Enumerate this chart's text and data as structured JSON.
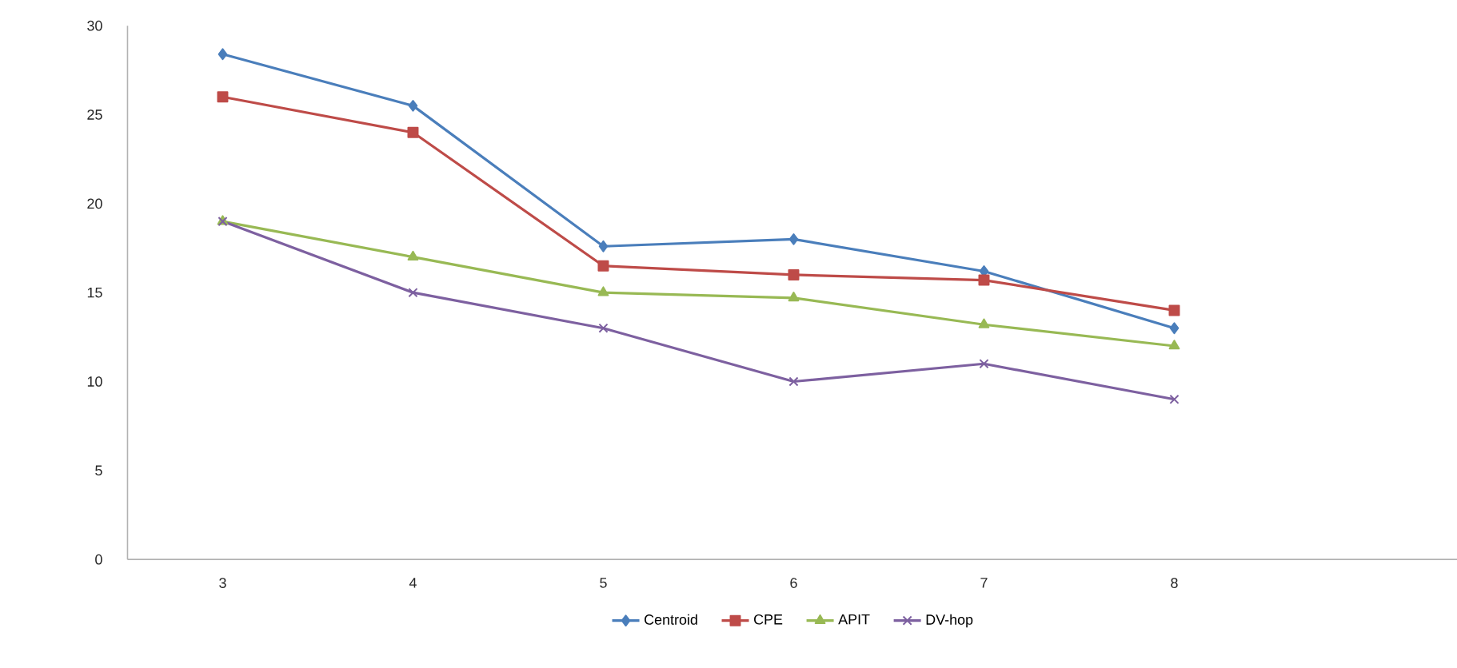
{
  "chart_data": {
    "type": "line",
    "categories": [
      "3",
      "4",
      "5",
      "6",
      "7",
      "8"
    ],
    "ylim": [
      0,
      30
    ],
    "yticks": [
      0,
      5,
      10,
      15,
      20,
      25,
      30
    ],
    "grid": false,
    "legend": "bottom",
    "series": [
      {
        "name": "Centroid",
        "color": "#4a7ebb",
        "marker": "diamond",
        "values": [
          28.4,
          25.5,
          17.6,
          18,
          16.2,
          13
        ]
      },
      {
        "name": "CPE",
        "color": "#be4b48",
        "marker": "square",
        "values": [
          26,
          24,
          16.5,
          16,
          15.7,
          14
        ]
      },
      {
        "name": "APIT",
        "color": "#98b954",
        "marker": "triangle",
        "values": [
          19,
          17,
          15,
          14.7,
          13.2,
          12
        ]
      },
      {
        "name": "DV-hop",
        "color": "#7d60a0",
        "marker": "cross",
        "values": [
          19,
          15,
          13,
          10,
          11,
          9
        ]
      }
    ]
  }
}
